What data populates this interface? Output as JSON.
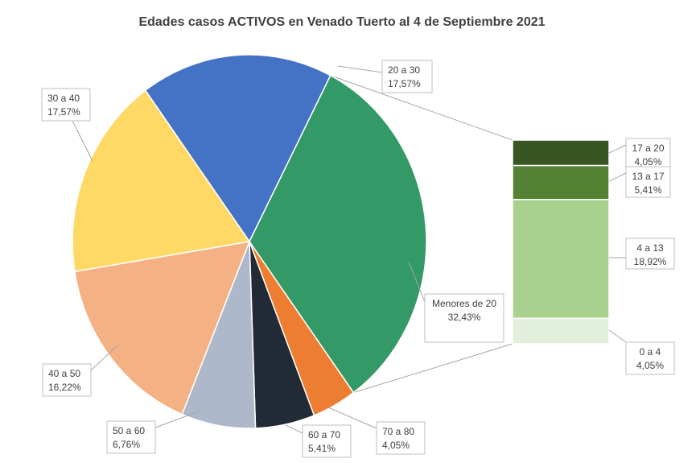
{
  "chart_data": {
    "type": "pie",
    "subtype": "bar-of-pie",
    "title": "Edades casos ACTIVOS en Venado Tuerto al 4 de Septiembre 2021",
    "slices": [
      {
        "label": "20 a 30",
        "value": 17.57,
        "value_label": "17,57%",
        "color": "#4472c4"
      },
      {
        "label": "Menores de 20",
        "value": 32.43,
        "value_label": "32,43%",
        "color": "#339966"
      },
      {
        "label": "70 a 80",
        "value": 4.05,
        "value_label": "4,05%",
        "color": "#ed7d31"
      },
      {
        "label": "60 a 70",
        "value": 5.41,
        "value_label": "5,41%",
        "color": "#222a35"
      },
      {
        "label": "50 a 60",
        "value": 6.76,
        "value_label": "6,76%",
        "color": "#adb9ca"
      },
      {
        "label": "40 a 50",
        "value": 16.22,
        "value_label": "16,22%",
        "color": "#f4b183"
      },
      {
        "label": "30 a 40",
        "value": 17.57,
        "value_label": "17,57%",
        "color": "#ffd966"
      }
    ],
    "breakdown_of": "Menores de 20",
    "breakdown": [
      {
        "label": "17 a 20",
        "value": 4.05,
        "value_label": "4,05%",
        "color": "#375623"
      },
      {
        "label": "13 a 17",
        "value": 5.41,
        "value_label": "5,41%",
        "color": "#548235"
      },
      {
        "label": "4 a 13",
        "value": 18.92,
        "value_label": "18,92%",
        "color": "#a9d18e"
      },
      {
        "label": "0 a 4",
        "value": 4.05,
        "value_label": "4,05%",
        "color": "#e2efda"
      }
    ]
  }
}
